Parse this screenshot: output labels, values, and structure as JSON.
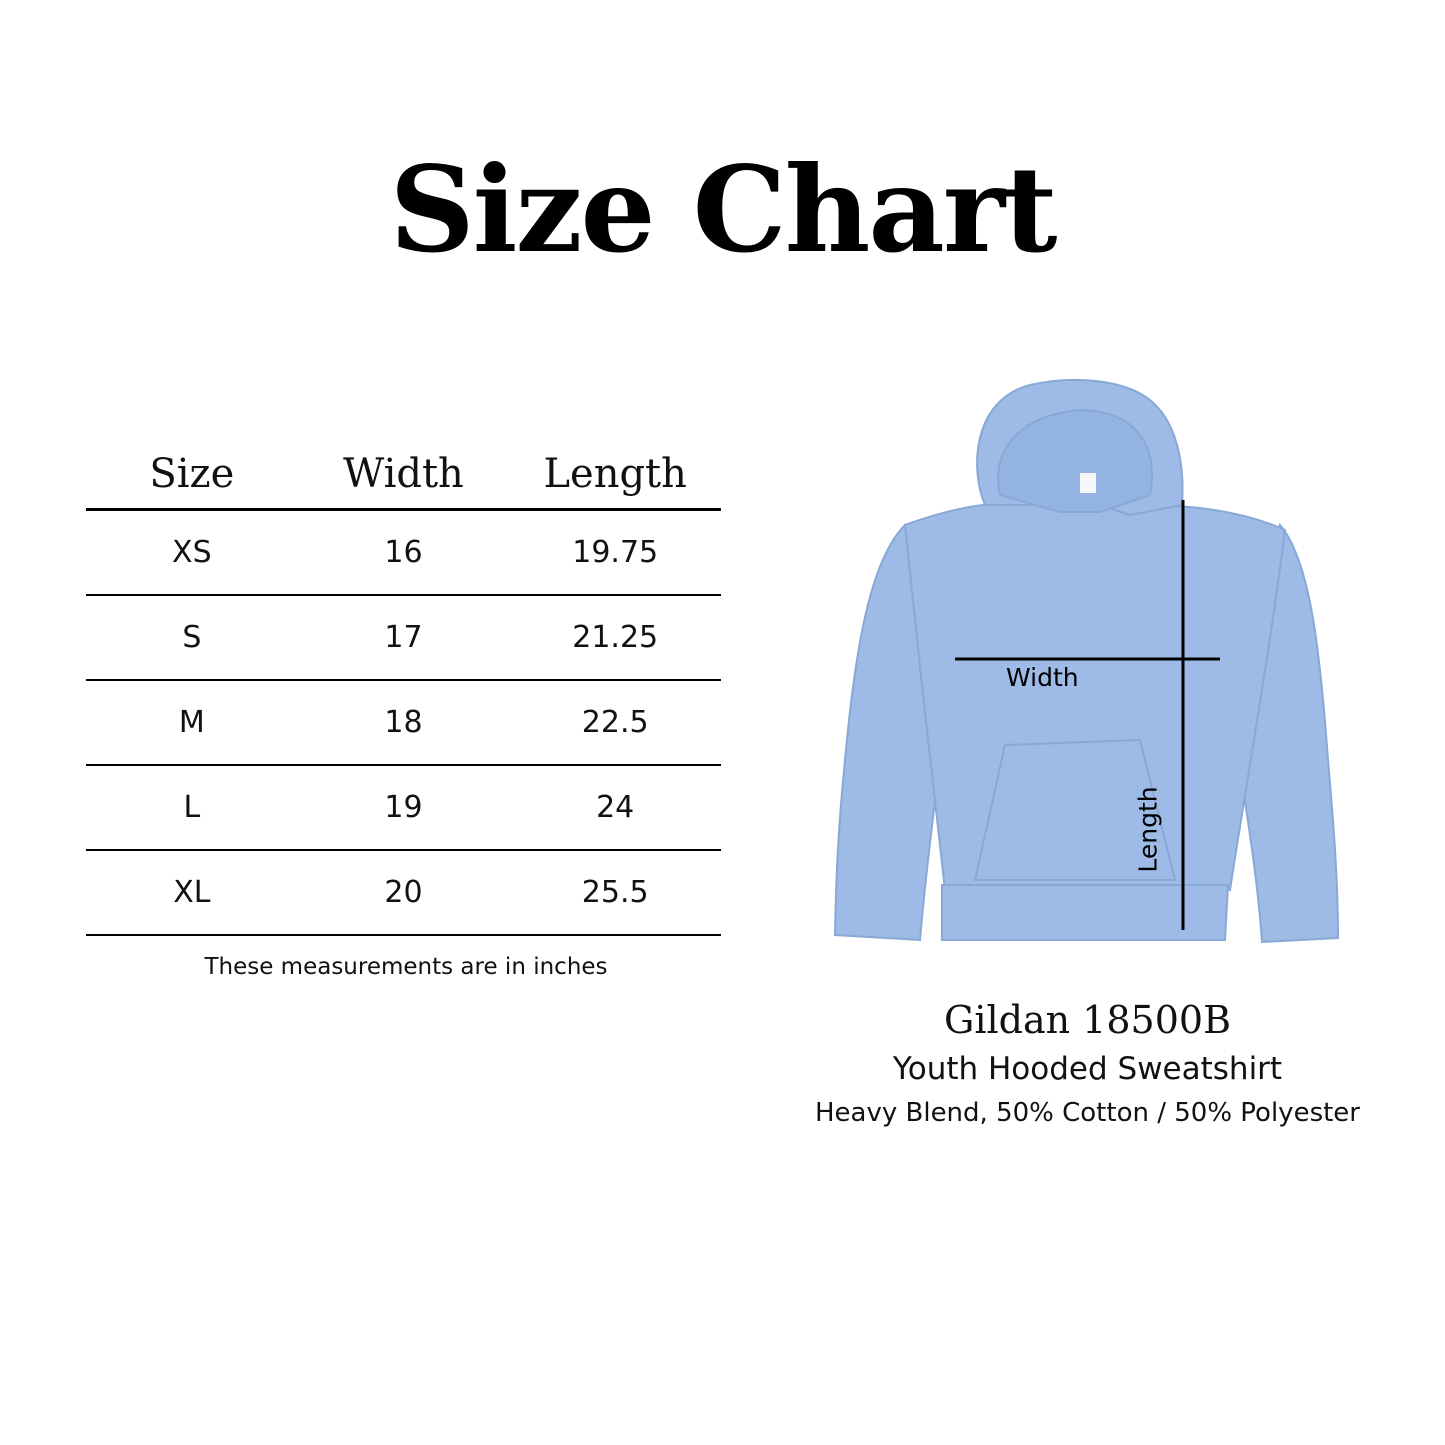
{
  "title": "Size Chart",
  "table": {
    "headers": [
      "Size",
      "Width",
      "Length"
    ],
    "rows": [
      [
        "XS",
        "16",
        "19.75"
      ],
      [
        "S",
        "17",
        "21.25"
      ],
      [
        "M",
        "18",
        "22.5"
      ],
      [
        "L",
        "19",
        "24"
      ],
      [
        "XL",
        "20",
        "25.5"
      ]
    ],
    "note": "These measurements are in inches"
  },
  "diagram": {
    "width_label": "Width",
    "length_label": "Length",
    "garment_color": "#9dbbe6"
  },
  "product": {
    "name": "Gildan 18500B",
    "type": "Youth Hooded Sweatshirt",
    "material": "Heavy Blend, 50% Cotton / 50% Polyester"
  }
}
